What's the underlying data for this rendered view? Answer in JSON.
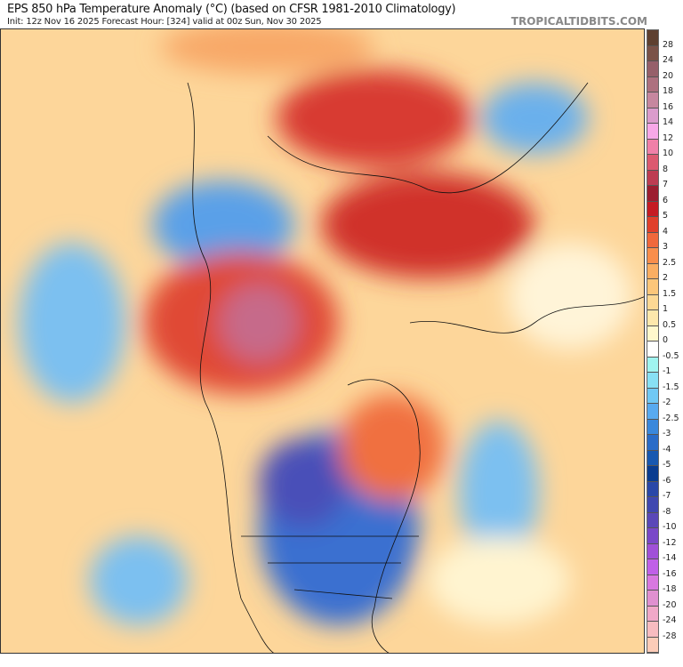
{
  "header": {
    "title": "EPS 850 hPa Temperature Anomaly (°C) (based on CFSR 1981-2010 Climatology)",
    "subtitle": "Init: 12z Nov 16 2025   Forecast Hour: [324]   valid at 00z Sun, Nov 30 2025",
    "brand": "TROPICALTIDBITS.COM"
  },
  "colorbar": {
    "labels": [
      "28",
      "24",
      "20",
      "18",
      "16",
      "14",
      "12",
      "10",
      "8",
      "7",
      "6",
      "5",
      "4",
      "3",
      "2.5",
      "2",
      "1.5",
      "1",
      "0.5",
      "0",
      "-0.5",
      "-1",
      "-1.5",
      "-2",
      "-2.5",
      "-3",
      "-4",
      "-5",
      "-6",
      "-7",
      "-8",
      "-10",
      "-12",
      "-14",
      "-16",
      "-18",
      "-20",
      "-24",
      "-28"
    ],
    "colors": [
      "#5e4030",
      "#7a5248",
      "#96606a",
      "#ad717f",
      "#c6879f",
      "#db9ccc",
      "#f8a8e8",
      "#f080a8",
      "#dc5a70",
      "#bd3c52",
      "#9c1e30",
      "#c51c24",
      "#e0402c",
      "#f0683c",
      "#f98e4c",
      "#fbae62",
      "#fcc67a",
      "#fdd894",
      "#fde8ac",
      "#fff8cc",
      "#ffffff",
      "#a0f4f0",
      "#88e0f4",
      "#70c8f4",
      "#58aaf0",
      "#3a88dc",
      "#2a6cc8",
      "#1858b0",
      "#0a3c90",
      "#2a48a8",
      "#4048b0",
      "#5a48b8",
      "#7a48c8",
      "#a050d8",
      "#c060e8",
      "#d878e0",
      "#e090d0",
      "#f0a8c8",
      "#f8bcc0",
      "#fcccb8"
    ]
  },
  "map": {
    "title": "",
    "background": "#fddb9c"
  }
}
